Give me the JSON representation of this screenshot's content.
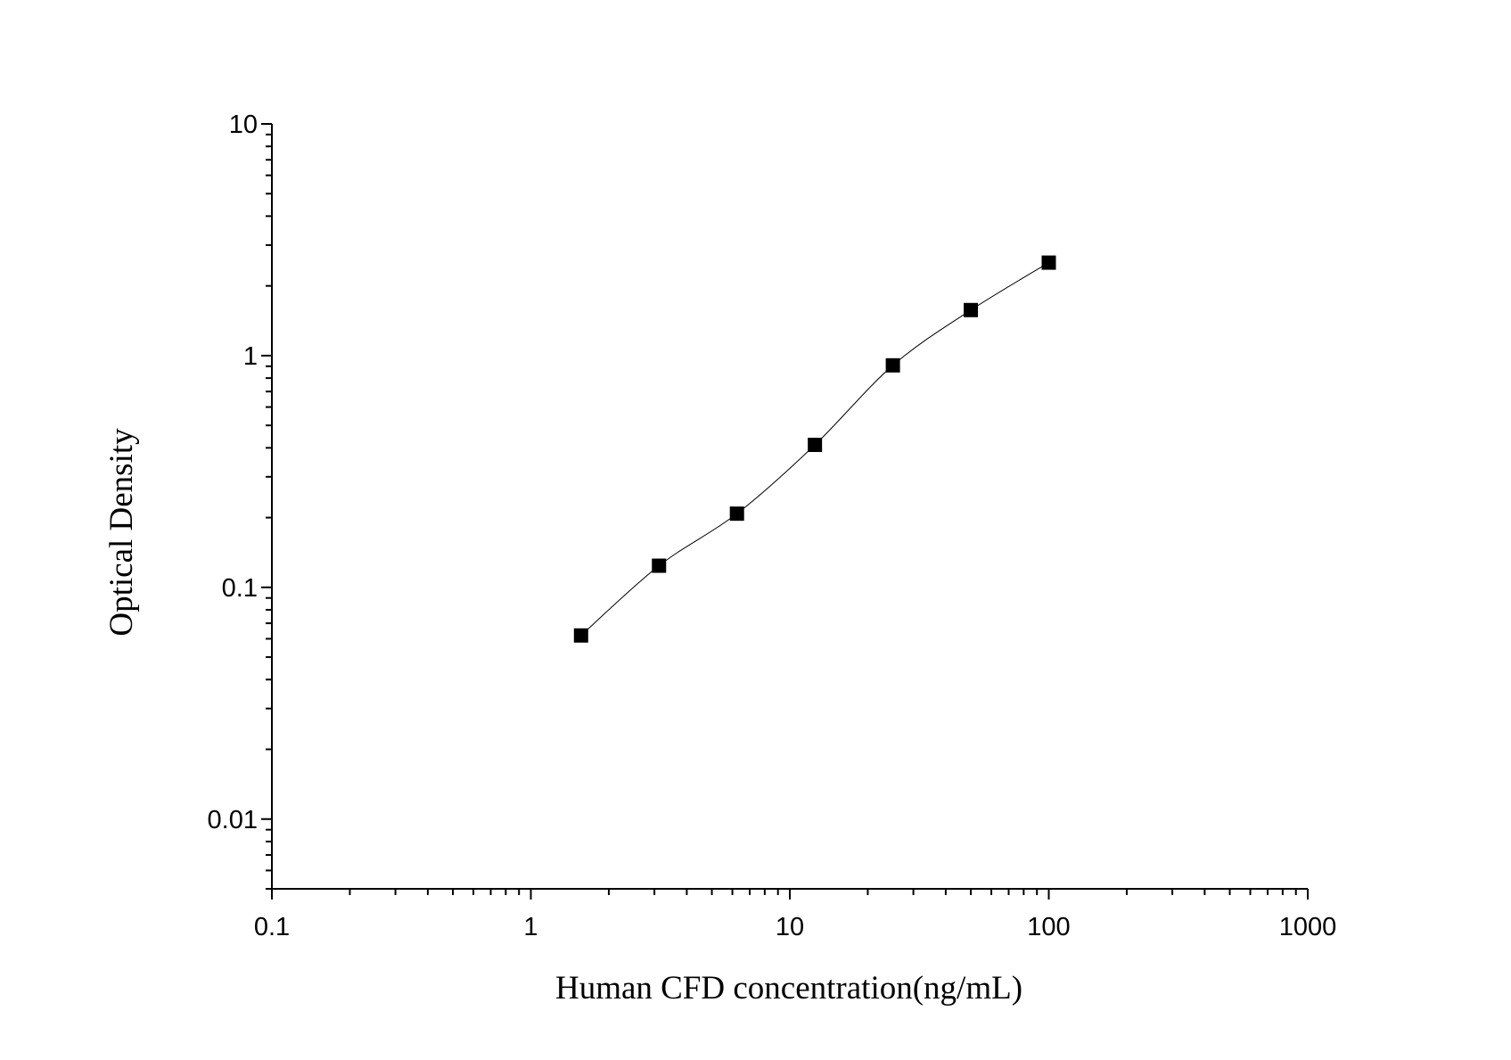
{
  "chart_data": {
    "type": "scatter",
    "xlabel": "Human CFD concentration(ng/mL)",
    "ylabel": "Optical Density",
    "xscale": "log",
    "yscale": "log",
    "xlim": [
      0.1,
      1000
    ],
    "ylim": [
      0.005,
      10
    ],
    "x_ticks": [
      "0.1",
      "1",
      "10",
      "100",
      "1000"
    ],
    "y_ticks": [
      "0.01",
      "0.1",
      "1",
      "10"
    ],
    "grid": false,
    "marker": "square",
    "fit_line": true,
    "colors": {
      "marker": "#000000",
      "line": "#000000"
    },
    "series": [
      {
        "x": [
          1.5625,
          3.125,
          6.25,
          12.5,
          25,
          50,
          100
        ],
        "y": [
          0.062,
          0.124,
          0.208,
          0.412,
          0.908,
          1.573,
          2.52
        ]
      }
    ]
  }
}
